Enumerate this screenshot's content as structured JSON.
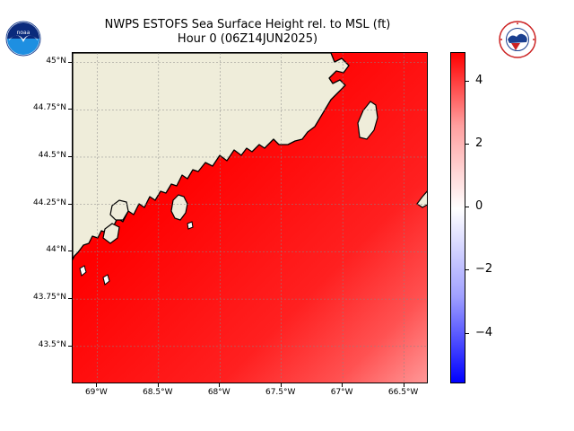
{
  "title": {
    "line1": "NWPS ESTOFS Sea Surface Height rel. to MSL (ft)",
    "line2": "Hour 0 (06Z14JUN2025)"
  },
  "logos": {
    "left": {
      "icon": "noaa-logo",
      "text": "noaa"
    },
    "right": {
      "icon": "nws-logo",
      "text": "NATIONAL WEATHER SERVICE"
    }
  },
  "map": {
    "extent": {
      "lon": [
        -69.2,
        -66.3
      ],
      "lat": [
        43.3,
        45.05
      ]
    },
    "gridlines": true,
    "land_color": "#efedda",
    "water_max_color": "#ff0000",
    "lat_ticks": [
      {
        "value": 45.0,
        "label": "45°N"
      },
      {
        "value": 44.75,
        "label": "44.75°N"
      },
      {
        "value": 44.5,
        "label": "44.5°N"
      },
      {
        "value": 44.25,
        "label": "44.25°N"
      },
      {
        "value": 44.0,
        "label": "44°N"
      },
      {
        "value": 43.75,
        "label": "43.75°N"
      },
      {
        "value": 43.5,
        "label": "43.5°N"
      }
    ],
    "lon_ticks": [
      {
        "value": -69.0,
        "label": "69°W"
      },
      {
        "value": -68.5,
        "label": "68.5°W"
      },
      {
        "value": -68.0,
        "label": "68°W"
      },
      {
        "value": -67.5,
        "label": "67.5°W"
      },
      {
        "value": -67.0,
        "label": "67°W"
      },
      {
        "value": -66.5,
        "label": "66.5°W"
      }
    ]
  },
  "colorbar": {
    "min": -5.6,
    "max": 4.9,
    "cmap": [
      "#0000ff",
      "#ffffff",
      "#ff0000"
    ],
    "ticks": [
      {
        "value": 4,
        "label": "4"
      },
      {
        "value": 2,
        "label": "2"
      },
      {
        "value": 0,
        "label": "0"
      },
      {
        "value": -2,
        "label": "−2"
      },
      {
        "value": -4,
        "label": "−4"
      }
    ]
  }
}
